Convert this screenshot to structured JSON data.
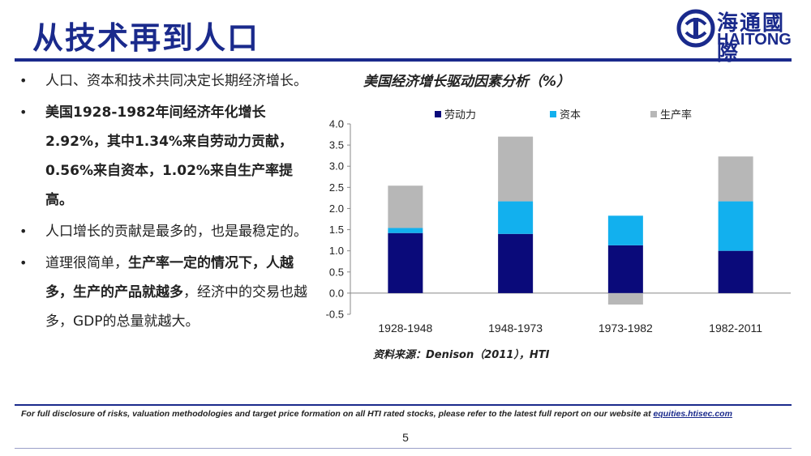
{
  "header": {
    "title": "从技术再到人口",
    "logo_cn": "海通國際",
    "logo_en": "HAITONG"
  },
  "bullets": [
    {
      "parts": [
        {
          "text": "人口、资本和技术共同决定长期经济增长。",
          "bold": false
        }
      ]
    },
    {
      "parts": [
        {
          "text": "美国1928-1982年间经济年化增长2.92%，其中1.34%来自劳动力贡献，0.56%来自资本，1.02%来自生产率提高。",
          "bold": true
        }
      ]
    },
    {
      "parts": [
        {
          "text": "人口增长的贡献是最多的，也是最稳定的。",
          "bold": false
        }
      ]
    },
    {
      "parts": [
        {
          "text": "道理很简单，",
          "bold": false
        },
        {
          "text": "生产率一定的情况下，人越多，生产的产品就越多",
          "bold": true
        },
        {
          "text": "，经济中的交易也越多，GDP的总量就越大。",
          "bold": false
        }
      ]
    }
  ],
  "chart_data": {
    "type": "bar",
    "stacked": true,
    "title": "美国经济增长驱动因素分析（%）",
    "categories": [
      "1928-1948",
      "1948-1973",
      "1973-1982",
      "1982-2011"
    ],
    "series": [
      {
        "name": "劳动力",
        "color": "#0a0a7a",
        "values": [
          1.42,
          1.4,
          1.13,
          1.0
        ]
      },
      {
        "name": "资本",
        "color": "#12b0ee",
        "values": [
          0.12,
          0.77,
          0.7,
          1.17
        ]
      },
      {
        "name": "生产率",
        "color": "#b7b7b7",
        "values": [
          1.0,
          1.53,
          -0.27,
          1.06
        ]
      }
    ],
    "ylim": [
      -0.5,
      4.0
    ],
    "yticks": [
      "4.0",
      "3.5",
      "3.0",
      "2.5",
      "2.0",
      "1.5",
      "1.0",
      "0.5",
      "0.0",
      "-0.5"
    ],
    "legend_position": "top"
  },
  "source": "资料来源：Denison（2011），HTI",
  "footer": {
    "disclaimer": "For full disclosure of risks, valuation methodologies and target price formation on all HTI rated stocks, please refer to the latest full report on our website at ",
    "link_text": "equities.htisec.com",
    "page_number": "5"
  }
}
